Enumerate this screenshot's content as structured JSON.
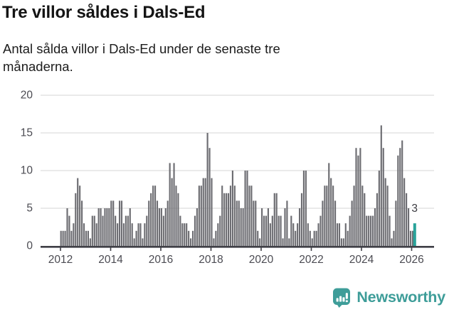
{
  "header": {
    "title": "Tre villor såldes i Dals-Ed",
    "subtitle": "Antal sålda villor i Dals-Ed under de senaste tre månaderna."
  },
  "chart_data": {
    "type": "bar",
    "title": "Antal sålda villor i Dals-Ed under de senaste tre månaderna",
    "xlabel": "",
    "ylabel": "",
    "x_start": "2012-01",
    "x_end": "2026-02",
    "x_tick_labels": [
      "2012",
      "2014",
      "2016",
      "2018",
      "2020",
      "2022",
      "2024",
      "2026"
    ],
    "y_ticks": [
      0,
      5,
      10,
      15,
      20
    ],
    "y_tick_labels": [
      "0",
      "5",
      "10",
      "15",
      "20"
    ],
    "ylim": [
      0,
      20
    ],
    "grid": true,
    "legend": "none",
    "values": [
      2,
      2,
      2,
      5,
      4,
      2,
      3,
      7,
      9,
      8,
      6,
      3,
      2,
      2,
      1,
      4,
      4,
      3,
      5,
      5,
      4,
      5,
      5,
      5,
      6,
      6,
      4,
      3,
      6,
      6,
      3,
      4,
      4,
      5,
      3,
      1,
      2,
      3,
      3,
      1,
      3,
      4,
      6,
      7,
      8,
      8,
      6,
      5,
      5,
      4,
      5,
      6,
      11,
      9,
      11,
      8,
      7,
      4,
      3,
      3,
      3,
      2,
      1,
      2,
      4,
      5,
      8,
      8,
      9,
      9,
      15,
      13,
      9,
      1,
      2,
      3,
      4,
      8,
      7,
      7,
      7,
      8,
      10,
      8,
      6,
      6,
      5,
      5,
      10,
      10,
      8,
      8,
      6,
      6,
      2,
      1,
      5,
      4,
      4,
      5,
      3,
      4,
      7,
      7,
      4,
      4,
      1,
      5,
      6,
      1,
      4,
      3,
      2,
      3,
      5,
      7,
      10,
      10,
      3,
      2,
      1,
      2,
      2,
      3,
      4,
      6,
      8,
      8,
      11,
      9,
      8,
      6,
      3,
      3,
      1,
      1,
      3,
      2,
      4,
      6,
      8,
      13,
      12,
      13,
      8,
      7,
      4,
      4,
      4,
      4,
      5,
      7,
      10,
      16,
      13,
      9,
      8,
      4,
      1,
      2,
      6,
      12,
      13,
      14,
      9,
      7,
      5,
      2,
      2,
      3
    ],
    "highlight_last_bar": true,
    "last_value_label": "3",
    "bar_color": "#6d6d72",
    "highlight_color": "#29a39a",
    "axis_color": "#3f3f46",
    "grid_color": "#e4e4e4",
    "tick_label_color": "#4b4b52"
  },
  "annotation": {
    "last_value": "3"
  },
  "footer": {
    "brand": "Newsworthy",
    "brand_color": "#3e9d99"
  }
}
